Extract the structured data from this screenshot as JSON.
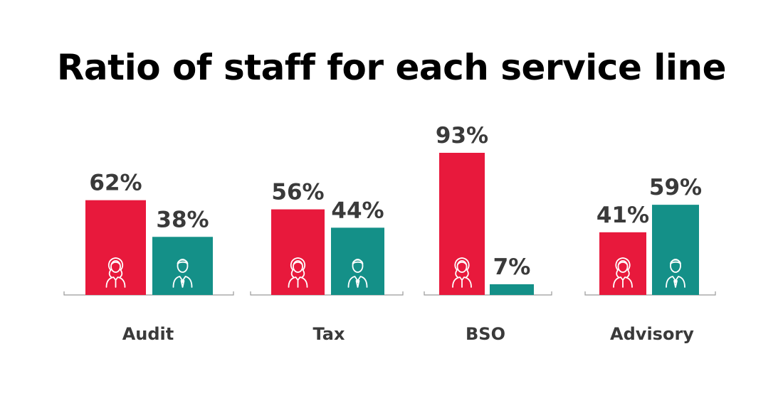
{
  "chart_data": {
    "type": "bar",
    "title": "Ratio of staff for each service line",
    "categories": [
      "Audit",
      "Tax",
      "BSO",
      "Advisory"
    ],
    "series": [
      {
        "color": "#e8193c",
        "icon": "woman-icon",
        "values": [
          62,
          56,
          93,
          41
        ]
      },
      {
        "color": "#149088",
        "icon": "man-icon",
        "values": [
          38,
          44,
          7,
          59
        ]
      }
    ],
    "value_suffix": "%",
    "ylim": [
      0,
      100
    ],
    "grid": false
  }
}
